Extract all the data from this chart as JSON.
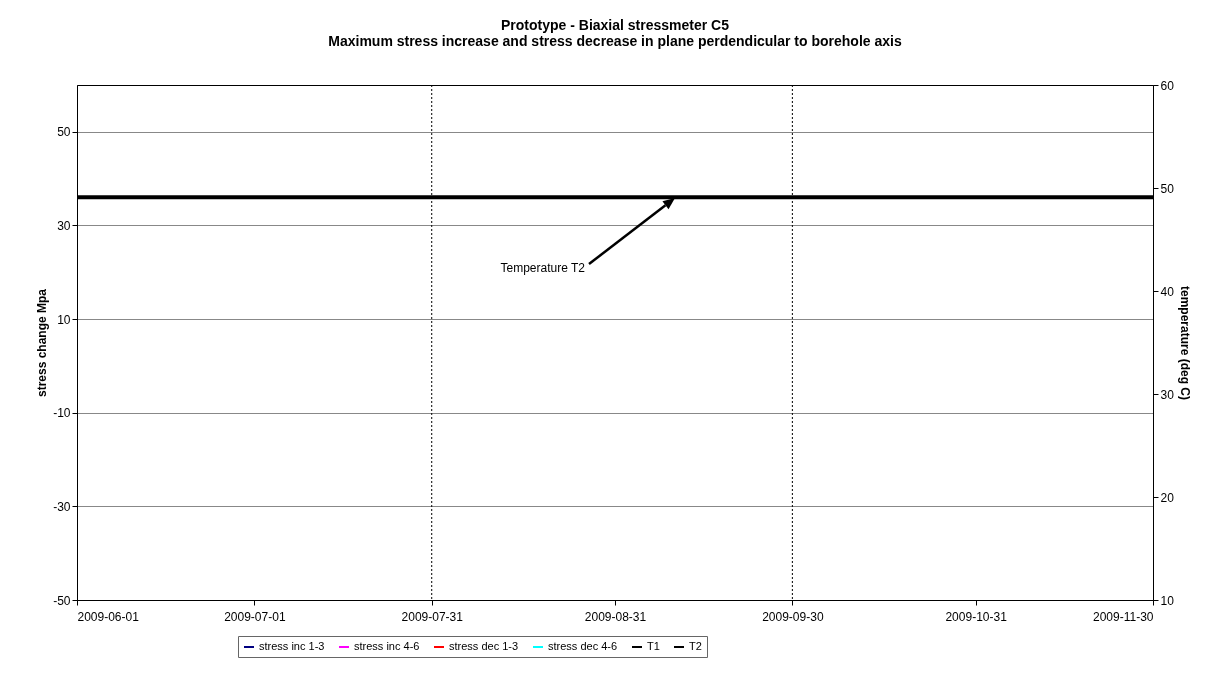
{
  "chart_data": {
    "type": "line",
    "title": "Prototype - Biaxial stressmeter C5",
    "subtitle": "Maximum stress increase and stress decrease in plane perdendicular to borehole axis",
    "ylabel": "stress change Mpa",
    "y2label": "temperature (deg C)",
    "x": [
      "2009-06-01",
      "2009-07-01",
      "2009-07-31",
      "2009-08-31",
      "2009-09-30",
      "2009-10-31",
      "2009-11-30"
    ],
    "series": [
      {
        "name": "stress inc 1-3",
        "color": "#000080",
        "values": [
          null,
          null,
          null,
          null,
          null,
          null,
          null
        ]
      },
      {
        "name": "stress inc 4-6",
        "color": "#ff00ff",
        "values": [
          null,
          null,
          null,
          null,
          null,
          null,
          null
        ]
      },
      {
        "name": "stress dec 1-3",
        "color": "#ff0000",
        "values": [
          null,
          null,
          null,
          null,
          null,
          null,
          null
        ]
      },
      {
        "name": "stress dec 4-6",
        "color": "#00ffff",
        "values": [
          null,
          null,
          null,
          null,
          null,
          null,
          null
        ]
      },
      {
        "name": "T1",
        "color": "#000000",
        "axis": "y2",
        "values": [
          null,
          null,
          null,
          null,
          null,
          null,
          null
        ]
      },
      {
        "name": "T2",
        "color": "#000000",
        "axis": "y2",
        "values": [
          49.1,
          49.1,
          49.1,
          49.1,
          49.1,
          49.1,
          49.1
        ]
      }
    ],
    "xlim": [
      "2009-06-01",
      "2009-11-30"
    ],
    "xticks": [
      "2009-06-01",
      "2009-07-01",
      "2009-07-31",
      "2009-08-31",
      "2009-09-30",
      "2009-10-31",
      "2009-11-30"
    ],
    "ylim": [
      -50,
      60
    ],
    "yticks": [
      -50,
      -30,
      -10,
      10,
      30,
      50
    ],
    "y2lim": [
      10,
      60
    ],
    "y2ticks": [
      10,
      20,
      30,
      40,
      50,
      60
    ],
    "ref_lines": [
      {
        "axis": "x",
        "value": "2009-07-31",
        "color": "#000000",
        "line_style": "dotted"
      },
      {
        "axis": "x",
        "value": "2009-09-30",
        "color": "#000000",
        "line_style": "dotted"
      }
    ],
    "annotations": [
      "Temperature T2"
    ],
    "grid": "y",
    "legend": "bottom"
  }
}
